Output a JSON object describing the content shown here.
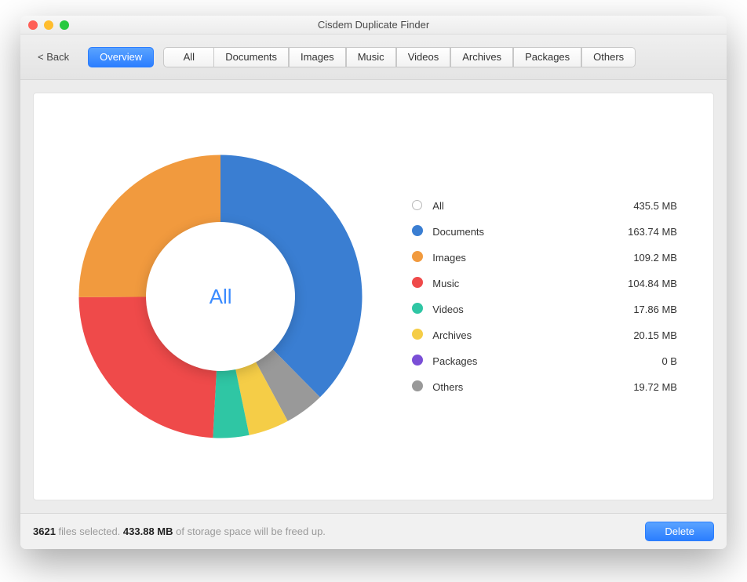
{
  "window": {
    "title": "Cisdem Duplicate Finder",
    "traffic_colors": {
      "close": "#ff5f57",
      "min": "#ffbd2e",
      "max": "#28c940"
    }
  },
  "toolbar": {
    "back_label": "< Back",
    "tabs": {
      "overview": "Overview",
      "items": [
        "All",
        "Documents",
        "Images",
        "Music",
        "Videos",
        "Archives",
        "Packages",
        "Others"
      ],
      "active_index": -1
    }
  },
  "chart": {
    "type": "donut",
    "center_label": "All",
    "center_label_color": "#3a8bff",
    "background_color": "#ffffff",
    "inner_radius_ratio": 0.5,
    "start_angle_deg": -90,
    "slices": [
      {
        "label": "Documents",
        "value_mb": 163.74,
        "color": "#3a7ed2"
      },
      {
        "label": "Others",
        "value_mb": 19.72,
        "color": "#999999"
      },
      {
        "label": "Archives",
        "value_mb": 20.15,
        "color": "#f5cd47"
      },
      {
        "label": "Videos",
        "value_mb": 17.86,
        "color": "#2fc6a4"
      },
      {
        "label": "Music",
        "value_mb": 104.84,
        "color": "#ef4a4a"
      },
      {
        "label": "Images",
        "value_mb": 109.2,
        "color": "#f19a3e"
      },
      {
        "label": "Packages",
        "value_mb": 0,
        "color": "#7a4fd6"
      }
    ]
  },
  "legend": {
    "rows": [
      {
        "label": "All",
        "size": "435.5 MB",
        "color": null
      },
      {
        "label": "Documents",
        "size": "163.74 MB",
        "color": "#3a7ed2"
      },
      {
        "label": "Images",
        "size": "109.2 MB",
        "color": "#f19a3e"
      },
      {
        "label": "Music",
        "size": "104.84 MB",
        "color": "#ef4a4a"
      },
      {
        "label": "Videos",
        "size": "17.86 MB",
        "color": "#2fc6a4"
      },
      {
        "label": "Archives",
        "size": "20.15 MB",
        "color": "#f5cd47"
      },
      {
        "label": "Packages",
        "size": "0 B",
        "color": "#7a4fd6"
      },
      {
        "label": "Others",
        "size": "19.72 MB",
        "color": "#999999"
      }
    ]
  },
  "footer": {
    "files_selected": "3621",
    "files_selected_suffix": " files selected. ",
    "freed_size": "433.88 MB",
    "freed_suffix": " of storage space will be freed up.",
    "delete_label": "Delete"
  }
}
